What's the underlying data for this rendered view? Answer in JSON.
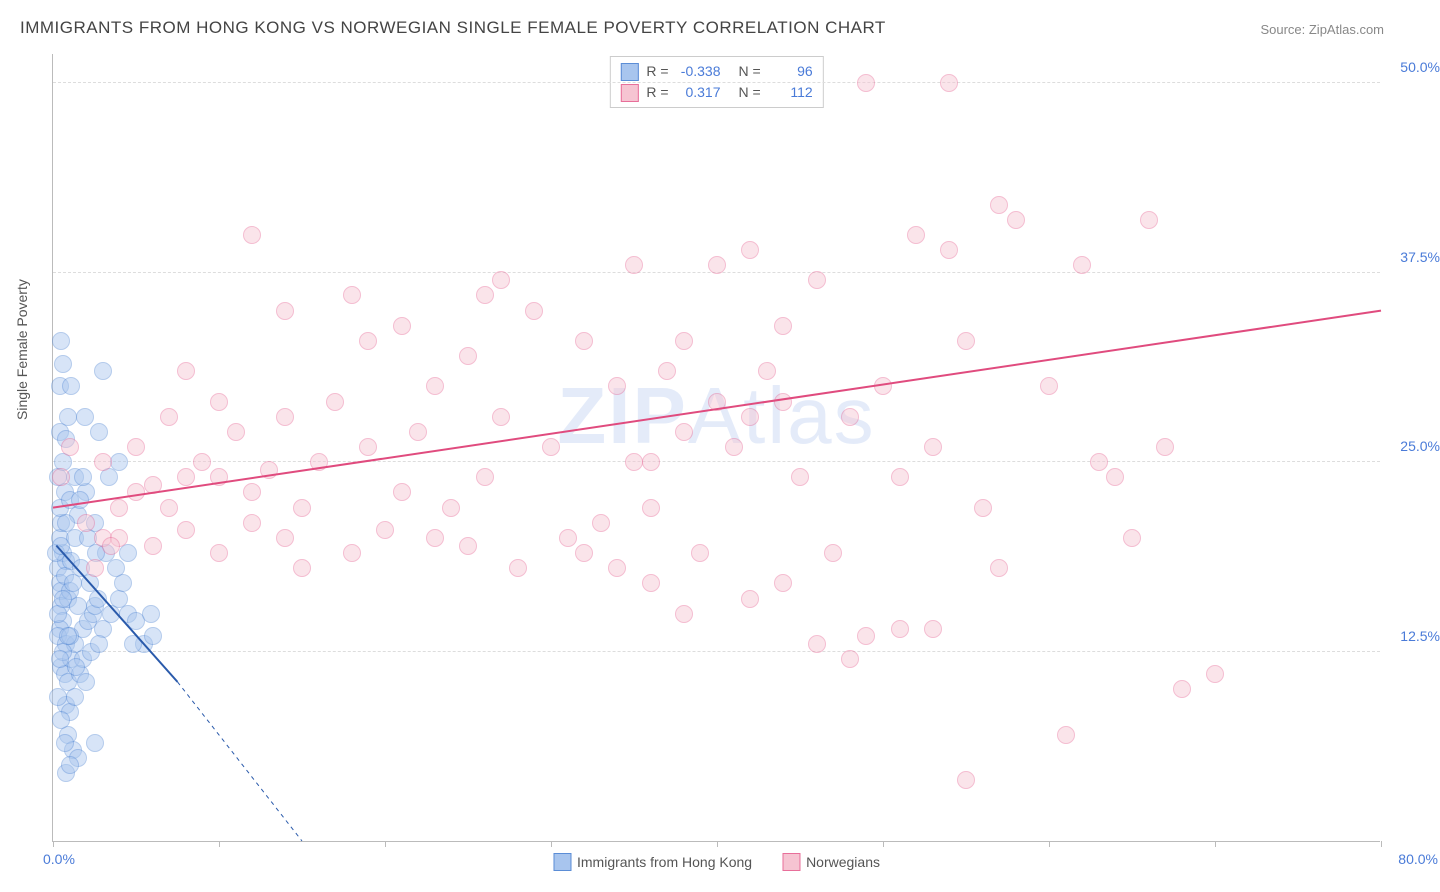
{
  "title": "IMMIGRANTS FROM HONG KONG VS NORWEGIAN SINGLE FEMALE POVERTY CORRELATION CHART",
  "source": "Source: ZipAtlas.com",
  "watermark_a": "ZIP",
  "watermark_b": "Atlas",
  "chart": {
    "type": "scatter",
    "y_label": "Single Female Poverty",
    "xlim": [
      0,
      80
    ],
    "ylim": [
      0,
      52
    ],
    "x_ticks": [
      0,
      10,
      20,
      30,
      40,
      50,
      60,
      70,
      80
    ],
    "x_tick_labels": {
      "min": "0.0%",
      "max": "80.0%"
    },
    "y_grid": [
      12.5,
      25.0,
      37.5,
      50.0
    ],
    "y_tick_labels": [
      "12.5%",
      "25.0%",
      "37.5%",
      "50.0%"
    ],
    "background_color": "#ffffff",
    "grid_color": "#dddddd",
    "axis_color": "#bbbbbb",
    "tick_label_color": "#4a7bd8",
    "marker_radius": 9,
    "marker_opacity": 0.45,
    "series": [
      {
        "name": "Immigrants from Hong Kong",
        "color_fill": "#a8c5ee",
        "color_stroke": "#5b8dd6",
        "R": "-0.338",
        "N": "96",
        "trend": {
          "x1": 0.2,
          "y1": 19.5,
          "x2": 7.5,
          "y2": 10.5,
          "dash_extend_x": 15,
          "dash_extend_y": 0,
          "color": "#2a5aab",
          "width": 2
        },
        "points": [
          [
            0.3,
            18
          ],
          [
            0.4,
            17
          ],
          [
            0.5,
            16.5
          ],
          [
            0.6,
            19
          ],
          [
            0.4,
            20
          ],
          [
            0.8,
            18.5
          ],
          [
            0.5,
            15.5
          ],
          [
            0.7,
            17.5
          ],
          [
            0.9,
            16
          ],
          [
            0.6,
            14.5
          ],
          [
            0.4,
            14
          ],
          [
            0.3,
            13.5
          ],
          [
            0.8,
            13
          ],
          [
            1.0,
            16.5
          ],
          [
            1.2,
            17
          ],
          [
            1.1,
            18.5
          ],
          [
            0.5,
            21
          ],
          [
            0.4,
            22
          ],
          [
            0.7,
            23
          ],
          [
            0.3,
            24
          ],
          [
            0.6,
            25
          ],
          [
            0.4,
            27
          ],
          [
            0.8,
            26.5
          ],
          [
            1.3,
            24
          ],
          [
            0.2,
            19
          ],
          [
            0.5,
            11.5
          ],
          [
            0.7,
            11
          ],
          [
            0.9,
            10.5
          ],
          [
            1.1,
            12
          ],
          [
            1.3,
            13
          ],
          [
            1.8,
            14
          ],
          [
            2.1,
            14.5
          ],
          [
            2.4,
            15
          ],
          [
            1.5,
            15.5
          ],
          [
            1.0,
            13.5
          ],
          [
            0.6,
            12.5
          ],
          [
            0.8,
            9
          ],
          [
            1.0,
            8.5
          ],
          [
            1.3,
            9.5
          ],
          [
            1.6,
            11
          ],
          [
            1.8,
            12
          ],
          [
            2.0,
            10.5
          ],
          [
            2.3,
            12.5
          ],
          [
            2.5,
            15.5
          ],
          [
            3.0,
            14
          ],
          [
            2.7,
            16
          ],
          [
            2.8,
            13
          ],
          [
            2.2,
            17
          ],
          [
            1.7,
            18
          ],
          [
            3.5,
            15
          ],
          [
            4.0,
            16
          ],
          [
            4.5,
            15
          ],
          [
            5.0,
            14.5
          ],
          [
            5.5,
            13
          ],
          [
            6.0,
            13.5
          ],
          [
            4.2,
            17
          ],
          [
            3.8,
            18
          ],
          [
            3.2,
            19
          ],
          [
            2.5,
            21
          ],
          [
            2.0,
            23
          ],
          [
            2.8,
            27
          ],
          [
            3.4,
            24
          ],
          [
            0.9,
            7
          ],
          [
            1.2,
            6
          ],
          [
            1.5,
            5.5
          ],
          [
            0.7,
            6.5
          ],
          [
            0.5,
            8
          ],
          [
            0.3,
            9.5
          ],
          [
            0.8,
            4.5
          ],
          [
            1.0,
            5
          ],
          [
            2.5,
            6.5
          ],
          [
            0.4,
            30
          ],
          [
            0.6,
            31.5
          ],
          [
            0.5,
            33
          ],
          [
            3.0,
            31
          ],
          [
            4.0,
            25
          ],
          [
            1.3,
            20
          ],
          [
            1.5,
            21.5
          ],
          [
            1.8,
            24
          ],
          [
            0.9,
            28
          ],
          [
            1.1,
            30
          ],
          [
            1.9,
            28
          ],
          [
            4.5,
            19
          ],
          [
            0.3,
            15
          ],
          [
            0.6,
            16
          ],
          [
            0.4,
            12
          ],
          [
            0.9,
            13.5
          ],
          [
            1.4,
            11.5
          ],
          [
            0.5,
            19.5
          ],
          [
            0.8,
            21
          ],
          [
            1.0,
            22.5
          ],
          [
            1.6,
            22.5
          ],
          [
            2.1,
            20
          ],
          [
            2.6,
            19
          ],
          [
            4.8,
            13
          ],
          [
            5.9,
            15
          ]
        ]
      },
      {
        "name": "Norwegians",
        "color_fill": "#f6c4d2",
        "color_stroke": "#e86f9a",
        "R": "0.317",
        "N": "112",
        "trend": {
          "x1": 0,
          "y1": 22,
          "x2": 80,
          "y2": 35,
          "color": "#e04b7e",
          "width": 2
        },
        "points": [
          [
            2,
            21
          ],
          [
            3,
            20
          ],
          [
            4,
            22
          ],
          [
            5,
            23
          ],
          [
            6,
            23.5
          ],
          [
            7,
            22
          ],
          [
            8,
            24
          ],
          [
            9,
            25
          ],
          [
            10,
            24
          ],
          [
            5,
            26
          ],
          [
            7,
            28
          ],
          [
            3,
            25
          ],
          [
            4,
            20
          ],
          [
            6,
            19.5
          ],
          [
            8,
            20.5
          ],
          [
            10,
            19
          ],
          [
            12,
            23
          ],
          [
            13,
            24.5
          ],
          [
            11,
            27
          ],
          [
            14,
            20
          ],
          [
            15,
            22
          ],
          [
            16,
            25
          ],
          [
            18,
            19
          ],
          [
            20,
            20.5
          ],
          [
            21,
            23
          ],
          [
            22,
            27
          ],
          [
            17,
            29
          ],
          [
            19,
            26
          ],
          [
            14,
            28
          ],
          [
            15,
            18
          ],
          [
            12,
            21
          ],
          [
            10,
            29
          ],
          [
            8,
            31
          ],
          [
            23,
            20
          ],
          [
            24,
            22
          ],
          [
            25,
            19.5
          ],
          [
            26,
            24
          ],
          [
            27,
            28
          ],
          [
            28,
            18
          ],
          [
            30,
            26
          ],
          [
            31,
            20
          ],
          [
            32,
            33
          ],
          [
            33,
            21
          ],
          [
            34,
            30
          ],
          [
            35,
            25
          ],
          [
            36,
            22
          ],
          [
            37,
            31
          ],
          [
            38,
            33
          ],
          [
            39,
            19
          ],
          [
            40,
            29
          ],
          [
            41,
            26
          ],
          [
            42,
            16
          ],
          [
            43,
            31
          ],
          [
            44,
            34
          ],
          [
            45,
            24
          ],
          [
            46,
            37
          ],
          [
            47,
            19
          ],
          [
            48,
            28
          ],
          [
            50,
            30
          ],
          [
            51,
            24
          ],
          [
            52,
            40
          ],
          [
            53,
            26
          ],
          [
            54,
            50
          ],
          [
            55,
            33
          ],
          [
            56,
            22
          ],
          [
            57,
            18
          ],
          [
            58,
            41
          ],
          [
            60,
            30
          ],
          [
            62,
            38
          ],
          [
            63,
            25
          ],
          [
            64,
            24
          ],
          [
            65,
            20
          ],
          [
            66,
            41
          ],
          [
            67,
            26
          ],
          [
            68,
            10
          ],
          [
            51,
            14
          ],
          [
            53,
            14
          ],
          [
            46,
            13
          ],
          [
            48,
            12
          ],
          [
            49,
            13.5
          ],
          [
            44,
            17
          ],
          [
            38,
            15
          ],
          [
            36,
            17
          ],
          [
            34,
            18
          ],
          [
            32,
            19
          ],
          [
            29,
            35
          ],
          [
            27,
            37
          ],
          [
            26,
            36
          ],
          [
            25,
            32
          ],
          [
            23,
            30
          ],
          [
            21,
            34
          ],
          [
            19,
            33
          ],
          [
            18,
            36
          ],
          [
            35,
            38
          ],
          [
            40,
            38
          ],
          [
            42,
            39
          ],
          [
            12,
            40
          ],
          [
            14,
            35
          ],
          [
            54,
            39
          ],
          [
            57,
            42
          ],
          [
            49,
            50
          ],
          [
            44,
            29
          ],
          [
            42,
            28
          ],
          [
            38,
            27
          ],
          [
            36,
            25
          ],
          [
            70,
            11
          ],
          [
            61,
            7
          ],
          [
            55,
            4
          ],
          [
            1,
            26
          ],
          [
            0.5,
            24
          ],
          [
            2.5,
            18
          ],
          [
            3.5,
            19.5
          ]
        ]
      }
    ]
  }
}
